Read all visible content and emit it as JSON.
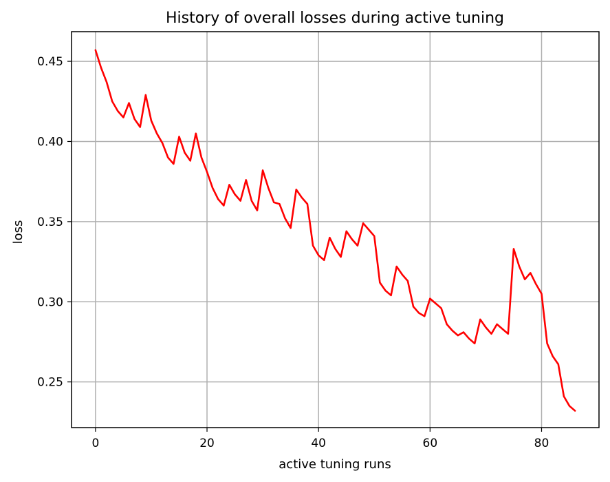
{
  "chart_data": {
    "type": "line",
    "title": "History of overall losses during active tuning",
    "xlabel": "active tuning runs",
    "ylabel": "loss",
    "xlim": [
      -4.3,
      90.3
    ],
    "ylim": [
      0.2215,
      0.4685
    ],
    "xticks": [
      0,
      20,
      40,
      60,
      80
    ],
    "xtick_labels": [
      "0",
      "20",
      "40",
      "60",
      "80"
    ],
    "yticks": [
      0.25,
      0.3,
      0.35,
      0.4,
      0.45
    ],
    "ytick_labels": [
      "0.25",
      "0.30",
      "0.35",
      "0.40",
      "0.45"
    ],
    "grid": true,
    "series": [
      {
        "color": "#ff0000",
        "x": [
          0,
          1,
          2,
          3,
          4,
          5,
          6,
          7,
          8,
          9,
          10,
          11,
          12,
          13,
          14,
          15,
          16,
          17,
          18,
          19,
          20,
          21,
          22,
          23,
          24,
          25,
          26,
          27,
          28,
          29,
          30,
          31,
          32,
          33,
          34,
          35,
          36,
          37,
          38,
          39,
          40,
          41,
          42,
          43,
          44,
          45,
          46,
          47,
          48,
          49,
          50,
          51,
          52,
          53,
          54,
          55,
          56,
          57,
          58,
          59,
          60,
          61,
          62,
          63,
          64,
          65,
          66,
          67,
          68,
          69,
          70,
          71,
          72,
          73,
          74,
          75,
          76,
          77,
          78,
          79,
          80,
          81,
          82,
          83,
          84,
          85,
          86
        ],
        "values": [
          0.457,
          0.446,
          0.437,
          0.425,
          0.419,
          0.415,
          0.424,
          0.414,
          0.409,
          0.429,
          0.413,
          0.405,
          0.399,
          0.39,
          0.386,
          0.403,
          0.393,
          0.388,
          0.405,
          0.39,
          0.381,
          0.371,
          0.364,
          0.36,
          0.373,
          0.367,
          0.363,
          0.376,
          0.363,
          0.357,
          0.382,
          0.371,
          0.362,
          0.361,
          0.352,
          0.346,
          0.37,
          0.365,
          0.361,
          0.335,
          0.329,
          0.326,
          0.34,
          0.333,
          0.328,
          0.344,
          0.339,
          0.335,
          0.349,
          0.345,
          0.341,
          0.312,
          0.307,
          0.304,
          0.322,
          0.317,
          0.313,
          0.297,
          0.293,
          0.291,
          0.302,
          0.299,
          0.296,
          0.286,
          0.282,
          0.279,
          0.281,
          0.277,
          0.274,
          0.289,
          0.284,
          0.28,
          0.286,
          0.283,
          0.28,
          0.333,
          0.322,
          0.314,
          0.318,
          0.311,
          0.305,
          0.274,
          0.266,
          0.261,
          0.241,
          0.235,
          0.232
        ]
      }
    ]
  }
}
